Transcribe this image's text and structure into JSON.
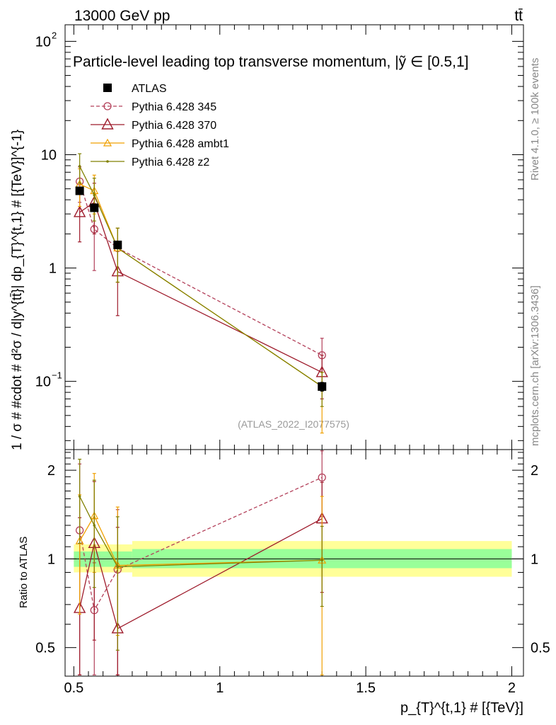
{
  "header": {
    "left": "13000 GeV pp",
    "right": "tt̄"
  },
  "side_labels": {
    "rivet": "Rivet 4.1.0, ≥ 100k events",
    "mcplots": "mcplots.cern.ch [arXiv:1306.3436]"
  },
  "colors": {
    "atlas": "#000000",
    "p345": "#b3405a",
    "p370": "#9e1b2b",
    "ambt1": "#f0a000",
    "z2": "#808000",
    "band_inner": "#99ff99",
    "band_outer": "#ffff99"
  },
  "chart_data": [
    {
      "type": "scatter",
      "panel": "main",
      "title": "Particle-level leading top transverse momentum, |ỹ ∈ [0.5,1]",
      "xlabel": "p_{T}^{t,1} # [{TeV}]",
      "ylabel": "1 / σ # #cdot # d²σ / d|y^{tt̄}| dp_{T}^{t,1} # [{TeV}]^{-1}",
      "xlim": [
        0.47,
        2.04
      ],
      "ylim": [
        0.025,
        140
      ],
      "yscale": "log",
      "yticks": [
        {
          "v": 0.1,
          "base": "10",
          "exp": "−1"
        },
        {
          "v": 1,
          "base": "1",
          "exp": ""
        },
        {
          "v": 10,
          "base": "10",
          "exp": ""
        },
        {
          "v": 100,
          "base": "10",
          "exp": "2"
        }
      ],
      "watermark": "(ATLAS_2022_I2077575)",
      "legend_position": "top-left",
      "series": [
        {
          "name": "ATLAS",
          "key": "atlas",
          "marker": "square",
          "line": "none",
          "x": [
            0.52,
            0.57,
            0.65,
            1.35
          ],
          "y": [
            4.8,
            3.4,
            1.6,
            0.09
          ],
          "err": [
            0.35,
            0.25,
            0.12,
            0.008
          ]
        },
        {
          "name": "Pythia 6.428 345",
          "key": "p345",
          "marker": "circle",
          "line": "dashed",
          "x": [
            0.52,
            0.57,
            0.65,
            1.35
          ],
          "y": [
            5.8,
            2.2,
            1.5,
            0.17
          ],
          "err_lo": [
            2.0,
            1.25,
            0.75,
            0.06
          ],
          "err_hi": [
            2.0,
            1.5,
            0.75,
            0.07
          ]
        },
        {
          "name": "Pythia 6.428 370",
          "key": "p370",
          "marker": "triangle",
          "line": "solid",
          "x": [
            0.52,
            0.57,
            0.65,
            1.35
          ],
          "y": [
            3.1,
            3.8,
            0.93,
            0.12
          ],
          "err_lo": [
            1.4,
            1.8,
            0.55,
            0.05
          ],
          "err_hi": [
            2.0,
            1.8,
            0.55,
            0.05
          ]
        },
        {
          "name": "Pythia 6.428 ambt1",
          "key": "ambt1",
          "marker": "triangle-small",
          "line": "solid",
          "x": [
            0.52,
            0.57,
            0.65,
            1.35
          ],
          "y": [
            5.5,
            4.8,
            1.5,
            0.09
          ],
          "err_lo": [
            2.0,
            1.8,
            0.75,
            0.055
          ],
          "err_hi": [
            2.0,
            1.8,
            0.75,
            0.03
          ]
        },
        {
          "name": "Pythia 6.428 z2",
          "key": "z2",
          "marker": "dot",
          "line": "solid",
          "x": [
            0.52,
            0.57,
            0.65,
            1.35
          ],
          "y": [
            7.9,
            4.4,
            1.5,
            0.09
          ],
          "err_lo": [
            2.3,
            1.8,
            0.75,
            0.03
          ],
          "err_hi": [
            2.3,
            1.8,
            0.75,
            0.03
          ]
        }
      ]
    },
    {
      "type": "scatter",
      "panel": "ratio",
      "xlabel": "p_{T}^{t,1} # [{TeV}]",
      "ylabel": "Ratio to ATLAS",
      "xlim": [
        0.47,
        2.04
      ],
      "ylim": [
        0.4,
        2.35
      ],
      "xticks": [
        {
          "v": 0.5,
          "label": "0.5"
        },
        {
          "v": 1,
          "label": "1"
        },
        {
          "v": 1.5,
          "label": "1.5"
        },
        {
          "v": 2,
          "label": "2"
        }
      ],
      "yticks": [
        {
          "v": 0.5,
          "label": "0.5"
        },
        {
          "v": 1,
          "label": "1"
        },
        {
          "v": 2,
          "label": "2"
        }
      ],
      "bands": [
        {
          "x0": 0.5,
          "x1": 0.7,
          "inner": [
            0.94,
            1.06
          ],
          "outer": [
            0.9,
            1.12
          ]
        },
        {
          "x0": 0.7,
          "x1": 2.0,
          "inner": [
            0.93,
            1.08
          ],
          "outer": [
            0.87,
            1.15
          ]
        }
      ],
      "series": [
        {
          "key": "p345",
          "marker": "circle",
          "line": "dashed",
          "x": [
            0.52,
            0.57,
            0.65,
            1.35
          ],
          "y": [
            1.25,
            0.67,
            0.92,
            1.89
          ],
          "err_lo": [
            0.85,
            0.3,
            0.55,
            0.5
          ],
          "err_hi": [
            0.85,
            0.3,
            0.55,
            0.45
          ]
        },
        {
          "key": "p370",
          "marker": "triangle",
          "line": "solid",
          "x": [
            0.52,
            0.57,
            0.65,
            1.35
          ],
          "y": [
            0.68,
            1.13,
            0.58,
            1.37
          ],
          "err_lo": [
            0.6,
            0.6,
            0.35,
            0.6
          ],
          "err_hi": [
            0.7,
            0.7,
            0.7,
            0.45
          ]
        },
        {
          "key": "ambt1",
          "marker": "triangle-small",
          "line": "solid",
          "x": [
            0.52,
            0.57,
            0.65,
            1.35
          ],
          "y": [
            1.15,
            1.4,
            0.95,
            0.99
          ],
          "err_lo": [
            0.5,
            0.5,
            0.4,
            0.64
          ],
          "err_hi": [
            0.5,
            0.55,
            0.55,
            0.64
          ]
        },
        {
          "key": "z2",
          "marker": "dot",
          "line": "solid",
          "x": [
            0.52,
            0.57,
            0.65,
            1.35
          ],
          "y": [
            1.63,
            1.3,
            0.94,
            0.99
          ],
          "err_lo": [
            0.5,
            0.5,
            0.45,
            0.3
          ],
          "err_hi": [
            0.55,
            0.55,
            0.45,
            0.3
          ]
        }
      ]
    }
  ]
}
